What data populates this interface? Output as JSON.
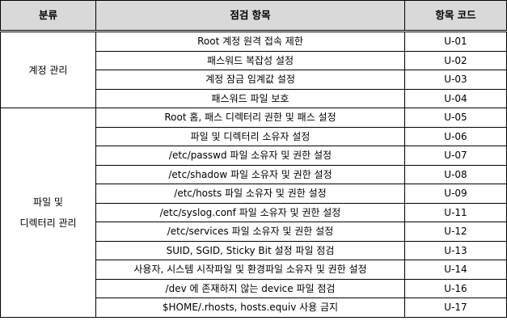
{
  "headers": {
    "category": "분류",
    "item": "점검 항목",
    "code": "항목 코드"
  },
  "groups": [
    {
      "category_lines": [
        "계정 관리"
      ],
      "rows": [
        {
          "item": "Root 계정 원격 접속 제한",
          "code": "U-01"
        },
        {
          "item": "패스워드 복잡성 설정",
          "code": "U-02"
        },
        {
          "item": "계정 잠금 임계값 설정",
          "code": "U-03"
        },
        {
          "item": "패스워드 파일 보호",
          "code": "U-04"
        }
      ]
    },
    {
      "category_lines": [
        "파일 및",
        "디렉터리 관리"
      ],
      "rows": [
        {
          "item": "Root 홈, 패스 디렉터리 권한 및 패스 설정",
          "code": "U-05"
        },
        {
          "item": "파일 및 디렉터리 소유자 설정",
          "code": "U-06"
        },
        {
          "item": "/etc/passwd 파일 소유자 및 권한 설정",
          "code": "U-07"
        },
        {
          "item": "/etc/shadow 파일 소유자 및 권한 설정",
          "code": "U-08"
        },
        {
          "item": "/etc/hosts 파일 소유자 및 권한 설정",
          "code": "U-09"
        },
        {
          "item": "/etc/syslog.conf 파일 소유자 및 권한 설정",
          "code": "U-11"
        },
        {
          "item": "/etc/services 파일 소유자 및 권한 설정",
          "code": "U-12"
        },
        {
          "item": "SUID, SGID, Sticky Bit 설정 파일 점검",
          "code": "U-13"
        },
        {
          "item": "사용자, 시스템 시작파일 및 환경파일 소유자 및 권한 설정",
          "code": "U-14"
        },
        {
          "item": "/dev 에 존재하지 않는 device 파일 점검",
          "code": "U-16"
        },
        {
          "item": "$HOME/.rhosts, hosts.equiv 사용 금지",
          "code": "U-17"
        }
      ]
    }
  ]
}
